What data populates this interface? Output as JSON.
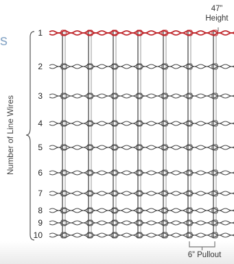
{
  "side_label": "Number of Line Wires",
  "height_label": "47”\nHeight",
  "height_line1": "47”",
  "height_line2": "Height",
  "pullout_label": "6” Pullout",
  "corner_mark": "s",
  "line_wires": [
    {
      "number": "1",
      "highlight": true
    },
    {
      "number": "2"
    },
    {
      "number": "3"
    },
    {
      "number": "4"
    },
    {
      "number": "5"
    },
    {
      "number": "6"
    },
    {
      "number": "7"
    },
    {
      "number": "8"
    },
    {
      "number": "9"
    },
    {
      "number": "10"
    }
  ],
  "vertical_stay_count": 8,
  "colors": {
    "top_wire": "#c0282d",
    "wire": "#4a4a4a",
    "bracket": "#555555"
  }
}
